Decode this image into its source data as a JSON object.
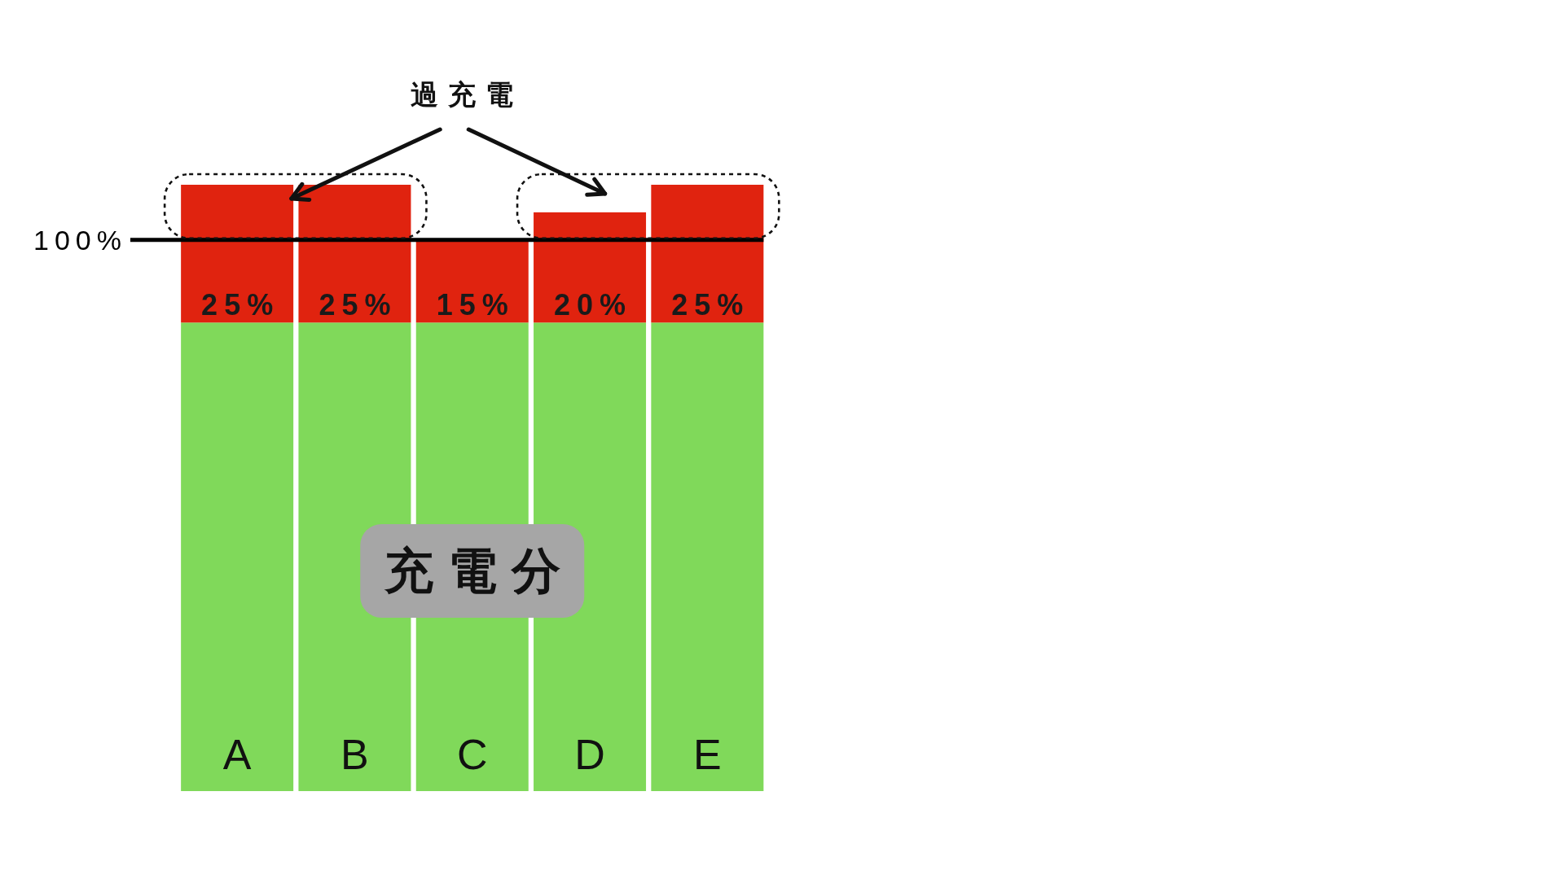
{
  "chart_data": {
    "type": "bar",
    "stacked": true,
    "categories": [
      "A",
      "B",
      "C",
      "D",
      "E"
    ],
    "series": [
      {
        "name": "充電分",
        "color": "#80d95a",
        "values": [
          85,
          85,
          85,
          85,
          85
        ]
      },
      {
        "color": "#e0230f",
        "values": [
          25,
          25,
          15,
          20,
          25
        ],
        "value_labels": [
          "25%",
          "25%",
          "15%",
          "20%",
          "25%"
        ]
      }
    ],
    "ylim": [
      0,
      110
    ],
    "tick_labels": "x",
    "ref_lines": [
      {
        "axis": "y",
        "value": 100,
        "label": "100%",
        "color": "#000000"
      }
    ],
    "annotations": [
      "過充電"
    ]
  }
}
